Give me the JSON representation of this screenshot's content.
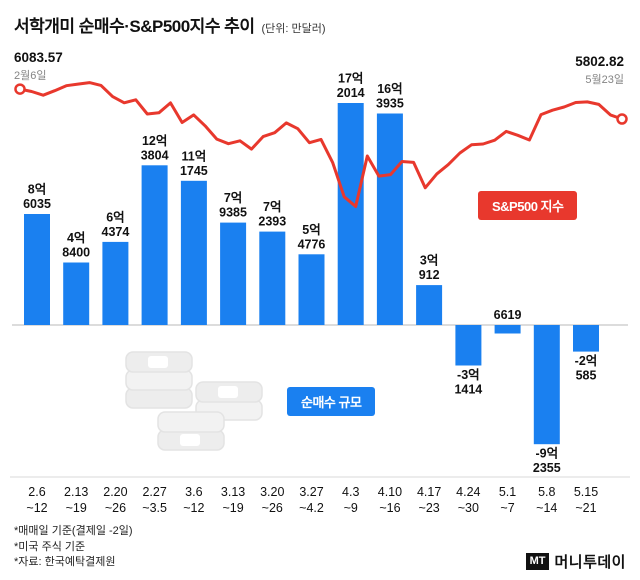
{
  "header": {
    "title": "서학개미 순매수·S&P500지수 추이",
    "unit": "(단위: 만달러)"
  },
  "annotations": {
    "start": {
      "value": "6083.57",
      "date": "2월6일"
    },
    "end": {
      "value": "5802.82",
      "date": "5월23일"
    }
  },
  "legend": {
    "sp500": "S&P500 지수",
    "net_purchase": "순매수 규모"
  },
  "footnotes": [
    "*매매일 기준(결제일 -2일)",
    "*미국 주식 기준",
    "*자료: 한국예탁결제원"
  ],
  "logo": {
    "mark": "MT",
    "name": "머니투데이"
  },
  "colors": {
    "bar_blue": "#1a80f0",
    "line_red": "#e8382d",
    "axis_gray": "#b9b9b9"
  },
  "illustration": "money-stack",
  "chart_data": {
    "type": "bar+line",
    "title": "서학개미 순매수·S&P500지수 추이",
    "unit": "만달러",
    "legend_position": "inside",
    "grid": false,
    "categories": [
      [
        "2.6",
        "~12"
      ],
      [
        "2.13",
        "~19"
      ],
      [
        "2.20",
        "~26"
      ],
      [
        "2.27",
        "~3.5"
      ],
      [
        "3.6",
        "~12"
      ],
      [
        "3.13",
        "~19"
      ],
      [
        "3.20",
        "~26"
      ],
      [
        "3.27",
        "~4.2"
      ],
      [
        "4.3",
        "~9"
      ],
      [
        "4.10",
        "~16"
      ],
      [
        "4.17",
        "~23"
      ],
      [
        "4.24",
        "~30"
      ],
      [
        "5.1",
        "~7"
      ],
      [
        "5.8",
        "~14"
      ],
      [
        "5.15",
        "~21"
      ]
    ],
    "bars": {
      "name": "순매수 규모",
      "values": [
        86035,
        48400,
        64374,
        123804,
        111745,
        79385,
        72393,
        54776,
        172014,
        163935,
        30912,
        -31414,
        -6619,
        -92355,
        -20585
      ],
      "labels": [
        [
          "8억",
          "6035"
        ],
        [
          "4억",
          "8400"
        ],
        [
          "6억",
          "4374"
        ],
        [
          "12억",
          "3804"
        ],
        [
          "11억",
          "1745"
        ],
        [
          "7억",
          "9385"
        ],
        [
          "7억",
          "2393"
        ],
        [
          "5억",
          "4776"
        ],
        [
          "17억",
          "2014"
        ],
        [
          "16억",
          "3935"
        ],
        [
          "3억",
          "912"
        ],
        [
          "-3억",
          "1414"
        ],
        [
          "6619"
        ],
        [
          "-9억",
          "2355"
        ],
        [
          "-2억",
          "585"
        ]
      ],
      "label_above_axis_indices": [
        12
      ]
    },
    "line": {
      "name": "S&P500 지수",
      "first": {
        "value": 6083.57,
        "date": "2월6일"
      },
      "last": {
        "value": 5802.82,
        "date": "5월23일"
      },
      "range": [
        4950,
        6150
      ],
      "values": [
        6083.57,
        6061,
        6026,
        6068,
        6115,
        6130,
        6144,
        6118,
        6013,
        5955,
        5983,
        5850,
        5861,
        5954,
        5770,
        5842,
        5738,
        5615,
        5572,
        5599,
        5521,
        5638,
        5675,
        5767,
        5712,
        5581,
        5612,
        5396,
        5074,
        4983,
        5456,
        5268,
        5282,
        5405,
        5396,
        5158,
        5288,
        5376,
        5484,
        5561,
        5569,
        5604,
        5687,
        5650,
        5606,
        5844,
        5886,
        5916,
        5958,
        5963,
        5940,
        5842,
        5802.82
      ]
    }
  }
}
